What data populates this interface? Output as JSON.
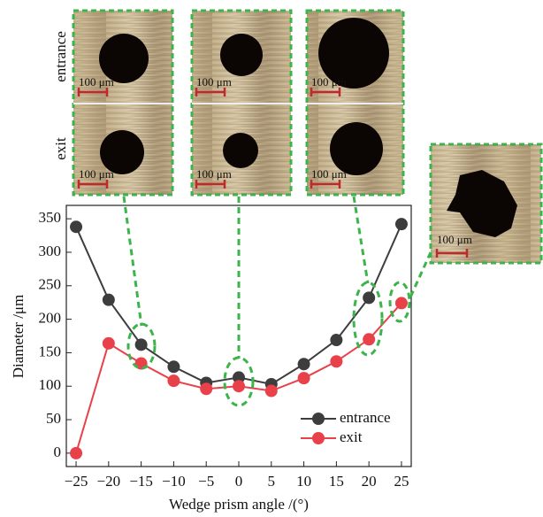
{
  "insets": {
    "row_labels": [
      "entrance",
      "exit"
    ],
    "scale_label": "100 μm"
  },
  "chart_data": {
    "type": "line",
    "xlabel": "Wedge prism angle /(°)",
    "ylabel": "Diameter /μm",
    "x": [
      -25,
      -20,
      -15,
      -10,
      -5,
      0,
      5,
      10,
      15,
      20,
      25
    ],
    "series": [
      {
        "name": "entrance",
        "color": "#3d3d3d",
        "values": [
          338,
          229,
          162,
          129,
          105,
          113,
          103,
          133,
          169,
          232,
          342
        ]
      },
      {
        "name": "exit",
        "color": "#e8414a",
        "values": [
          0,
          164,
          134,
          108,
          96,
          100,
          93,
          112,
          137,
          170,
          224
        ]
      }
    ],
    "xlim": [
      -26.5,
      26.5
    ],
    "xticks": [
      {
        "value": -25,
        "label": "−25"
      },
      {
        "value": -20,
        "label": "−20"
      },
      {
        "value": -15,
        "label": "−15"
      },
      {
        "value": -10,
        "label": "−10"
      },
      {
        "value": -5,
        "label": "−5"
      },
      0,
      5,
      10,
      15,
      20,
      25
    ],
    "ylim": [
      -20,
      370
    ],
    "yticks": [
      0,
      50,
      100,
      150,
      200,
      250,
      300,
      350
    ],
    "legend": "lower right",
    "grid": false
  }
}
